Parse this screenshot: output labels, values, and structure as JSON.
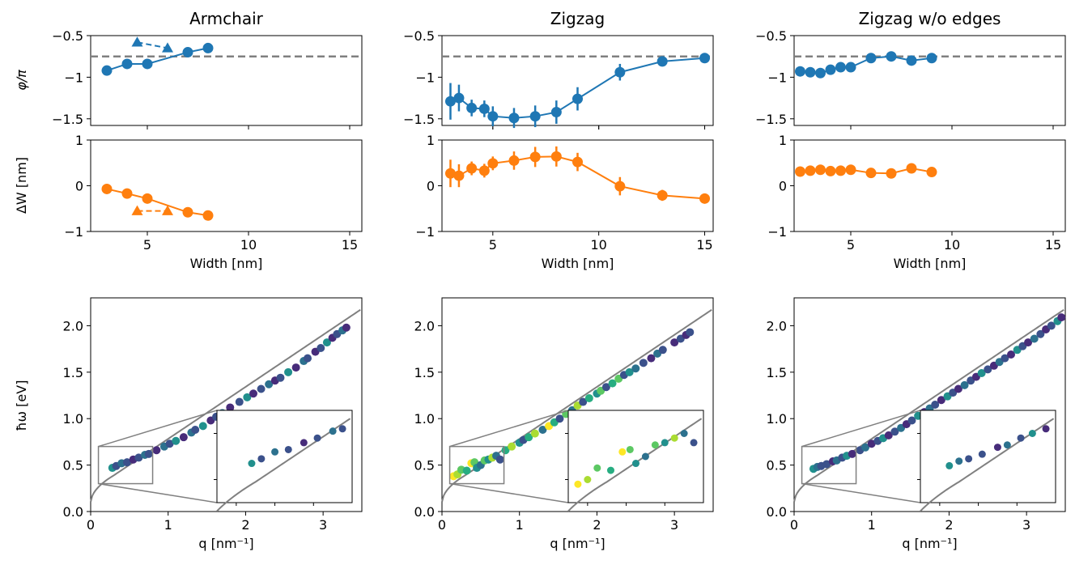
{
  "colors": {
    "phase": "#1f77b4",
    "width_shift": "#ff7f0e",
    "reference": "#808080",
    "viridis": [
      "#440154",
      "#472c7a",
      "#3b518b",
      "#2c718e",
      "#21908d",
      "#27ad81",
      "#5cc863",
      "#aadc32",
      "#fde725"
    ]
  },
  "labels": {
    "phi_ylabel": "φ/π",
    "dw_ylabel": "ΔW [nm]",
    "width_xlabel": "Width [nm]",
    "disp_ylabel": "ħω [eV]",
    "disp_xlabel": "q [nm⁻¹]"
  },
  "chart_data": [
    {
      "type": "line",
      "panel": "phase",
      "title": "Armchair",
      "ylabel": "φ/π",
      "xlim": [
        2.2,
        15.6
      ],
      "ylim": [
        -1.58,
        -0.5
      ],
      "xticks": [
        5,
        10,
        15
      ],
      "yticks": [
        -1.5,
        -1.0,
        -0.5
      ],
      "reference_line": -0.75,
      "series": [
        {
          "style": "solid-circle",
          "x": [
            3,
            4,
            5,
            7,
            8
          ],
          "y": [
            -0.92,
            -0.84,
            -0.84,
            -0.7,
            -0.65
          ],
          "err": [
            0,
            0,
            0,
            0,
            0
          ]
        },
        {
          "style": "dashed-triangle",
          "x": [
            4.5,
            6
          ],
          "y": [
            -0.58,
            -0.65
          ]
        }
      ]
    },
    {
      "type": "line",
      "panel": "phase",
      "title": "Zigzag",
      "ylabel": "",
      "xlim": [
        2.6,
        15.4
      ],
      "ylim": [
        -1.58,
        -0.5
      ],
      "xticks": [
        5,
        10,
        15
      ],
      "yticks": [
        -1.5,
        -1.0,
        -0.5
      ],
      "reference_line": -0.75,
      "series": [
        {
          "style": "solid-circle",
          "x": [
            3,
            3.4,
            4,
            4.6,
            5,
            6,
            7,
            8,
            9,
            11,
            13,
            15
          ],
          "y": [
            -1.29,
            -1.25,
            -1.37,
            -1.38,
            -1.47,
            -1.49,
            -1.47,
            -1.42,
            -1.26,
            -0.94,
            -0.81,
            -0.77
          ],
          "err": [
            0.22,
            0.16,
            0.1,
            0.1,
            0.12,
            0.12,
            0.13,
            0.14,
            0.14,
            0.1,
            0.04,
            0.04
          ]
        }
      ]
    },
    {
      "type": "line",
      "panel": "phase",
      "title": "Zigzag w/o edges",
      "ylabel": "",
      "xlim": [
        2.2,
        15.6
      ],
      "ylim": [
        -1.58,
        -0.5
      ],
      "xticks": [
        5,
        10,
        15
      ],
      "yticks": [
        -1.5,
        -1.0,
        -0.5
      ],
      "reference_line": -0.75,
      "series": [
        {
          "style": "solid-circle",
          "x": [
            2.5,
            3,
            3.5,
            4,
            4.5,
            5,
            6,
            7,
            8,
            9
          ],
          "y": [
            -0.93,
            -0.94,
            -0.95,
            -0.91,
            -0.88,
            -0.88,
            -0.77,
            -0.75,
            -0.8,
            -0.77
          ],
          "err": [
            0,
            0,
            0,
            0,
            0,
            0,
            0,
            0,
            0,
            0
          ]
        }
      ]
    },
    {
      "type": "line",
      "panel": "width_shift",
      "title": "",
      "ylabel": "ΔW [nm]",
      "xlabel": "Width [nm]",
      "xlim": [
        2.2,
        15.6
      ],
      "ylim": [
        -1,
        1
      ],
      "xticks": [
        5,
        10,
        15
      ],
      "yticks": [
        -1,
        0,
        1
      ],
      "series": [
        {
          "style": "solid-circle",
          "x": [
            3,
            4,
            5,
            7,
            8
          ],
          "y": [
            -0.07,
            -0.17,
            -0.28,
            -0.58,
            -0.65
          ],
          "err": [
            0,
            0,
            0,
            0,
            0
          ]
        },
        {
          "style": "dashed-triangle",
          "x": [
            4.5,
            6
          ],
          "y": [
            -0.55,
            -0.55
          ]
        }
      ]
    },
    {
      "type": "line",
      "panel": "width_shift",
      "title": "",
      "ylabel": "",
      "xlabel": "Width [nm]",
      "xlim": [
        2.6,
        15.4
      ],
      "ylim": [
        -1,
        1
      ],
      "xticks": [
        5,
        10,
        15
      ],
      "yticks": [
        -1,
        0,
        1
      ],
      "series": [
        {
          "style": "solid-circle",
          "x": [
            3,
            3.4,
            4,
            4.6,
            5,
            6,
            7,
            8,
            9,
            11,
            13,
            15
          ],
          "y": [
            0.27,
            0.22,
            0.38,
            0.33,
            0.49,
            0.55,
            0.63,
            0.64,
            0.52,
            -0.01,
            -0.21,
            -0.28
          ],
          "err": [
            0.3,
            0.25,
            0.15,
            0.15,
            0.15,
            0.2,
            0.22,
            0.22,
            0.2,
            0.2,
            0.12,
            0.06
          ]
        }
      ]
    },
    {
      "type": "line",
      "panel": "width_shift",
      "title": "",
      "ylabel": "",
      "xlabel": "Width [nm]",
      "xlim": [
        2.2,
        15.6
      ],
      "ylim": [
        -1,
        1
      ],
      "xticks": [
        5,
        10,
        15
      ],
      "yticks": [
        -1,
        0,
        1
      ],
      "series": [
        {
          "style": "solid-circle",
          "x": [
            2.5,
            3,
            3.5,
            4,
            4.5,
            5,
            6,
            7,
            8,
            9
          ],
          "y": [
            0.31,
            0.33,
            0.35,
            0.32,
            0.33,
            0.35,
            0.28,
            0.27,
            0.38,
            0.3
          ],
          "err": [
            0,
            0,
            0,
            0,
            0,
            0,
            0,
            0,
            0,
            0
          ]
        }
      ]
    },
    {
      "type": "scatter",
      "panel": "dispersion",
      "title": "",
      "ylabel": "ħω [eV]",
      "xlabel": "q [nm⁻¹]",
      "xlim": [
        0,
        3.5
      ],
      "ylim": [
        0,
        2.3
      ],
      "xticks": [
        0,
        1,
        2,
        3
      ],
      "yticks": [
        0.0,
        0.5,
        1.0,
        1.5,
        2.0
      ],
      "inset": {
        "xlim": [
          0.1,
          0.8
        ],
        "ylim": [
          0.3,
          0.7
        ]
      },
      "points": [
        {
          "x": 0.28,
          "y": 0.47,
          "c": 4
        },
        {
          "x": 0.33,
          "y": 0.49,
          "c": 2
        },
        {
          "x": 0.4,
          "y": 0.52,
          "c": 3
        },
        {
          "x": 0.47,
          "y": 0.53,
          "c": 2
        },
        {
          "x": 0.55,
          "y": 0.56,
          "c": 1
        },
        {
          "x": 0.62,
          "y": 0.58,
          "c": 2
        },
        {
          "x": 0.7,
          "y": 0.61,
          "c": 3
        },
        {
          "x": 0.75,
          "y": 0.62,
          "c": 2
        },
        {
          "x": 0.85,
          "y": 0.66,
          "c": 1
        },
        {
          "x": 0.95,
          "y": 0.7,
          "c": 3
        },
        {
          "x": 1.02,
          "y": 0.73,
          "c": 2
        },
        {
          "x": 1.1,
          "y": 0.76,
          "c": 4
        },
        {
          "x": 1.2,
          "y": 0.8,
          "c": 1
        },
        {
          "x": 1.3,
          "y": 0.85,
          "c": 3
        },
        {
          "x": 1.35,
          "y": 0.88,
          "c": 2
        },
        {
          "x": 1.45,
          "y": 0.92,
          "c": 4
        },
        {
          "x": 1.55,
          "y": 0.98,
          "c": 1
        },
        {
          "x": 1.62,
          "y": 1.02,
          "c": 2
        },
        {
          "x": 1.7,
          "y": 1.06,
          "c": 3
        },
        {
          "x": 1.8,
          "y": 1.12,
          "c": 1
        },
        {
          "x": 1.92,
          "y": 1.18,
          "c": 2
        },
        {
          "x": 2.02,
          "y": 1.23,
          "c": 4
        },
        {
          "x": 2.1,
          "y": 1.27,
          "c": 1
        },
        {
          "x": 2.2,
          "y": 1.32,
          "c": 2
        },
        {
          "x": 2.3,
          "y": 1.37,
          "c": 3
        },
        {
          "x": 2.38,
          "y": 1.41,
          "c": 1
        },
        {
          "x": 2.45,
          "y": 1.44,
          "c": 2
        },
        {
          "x": 2.55,
          "y": 1.5,
          "c": 4
        },
        {
          "x": 2.65,
          "y": 1.55,
          "c": 1
        },
        {
          "x": 2.75,
          "y": 1.62,
          "c": 3
        },
        {
          "x": 2.8,
          "y": 1.65,
          "c": 2
        },
        {
          "x": 2.9,
          "y": 1.72,
          "c": 1
        },
        {
          "x": 2.97,
          "y": 1.76,
          "c": 2
        },
        {
          "x": 3.05,
          "y": 1.82,
          "c": 4
        },
        {
          "x": 3.12,
          "y": 1.87,
          "c": 1
        },
        {
          "x": 3.18,
          "y": 1.91,
          "c": 2
        },
        {
          "x": 3.25,
          "y": 1.95,
          "c": 3
        },
        {
          "x": 3.3,
          "y": 1.98,
          "c": 1
        }
      ]
    },
    {
      "type": "scatter",
      "panel": "dispersion",
      "title": "",
      "ylabel": "",
      "xlabel": "q [nm⁻¹]",
      "xlim": [
        0,
        3.5
      ],
      "ylim": [
        0,
        2.3
      ],
      "xticks": [
        0,
        1,
        2,
        3
      ],
      "yticks": [
        0.0,
        0.5,
        1.0,
        1.5,
        2.0
      ],
      "inset": {
        "xlim": [
          0.1,
          0.8
        ],
        "ylim": [
          0.3,
          0.7
        ]
      },
      "points": [
        {
          "x": 0.15,
          "y": 0.38,
          "c": 8
        },
        {
          "x": 0.2,
          "y": 0.4,
          "c": 7
        },
        {
          "x": 0.25,
          "y": 0.45,
          "c": 6
        },
        {
          "x": 0.32,
          "y": 0.44,
          "c": 5
        },
        {
          "x": 0.38,
          "y": 0.52,
          "c": 8
        },
        {
          "x": 0.42,
          "y": 0.53,
          "c": 6
        },
        {
          "x": 0.45,
          "y": 0.47,
          "c": 4
        },
        {
          "x": 0.5,
          "y": 0.5,
          "c": 3
        },
        {
          "x": 0.55,
          "y": 0.55,
          "c": 6
        },
        {
          "x": 0.6,
          "y": 0.56,
          "c": 4
        },
        {
          "x": 0.65,
          "y": 0.58,
          "c": 7
        },
        {
          "x": 0.7,
          "y": 0.6,
          "c": 3
        },
        {
          "x": 0.75,
          "y": 0.56,
          "c": 2
        },
        {
          "x": 0.82,
          "y": 0.66,
          "c": 5
        },
        {
          "x": 0.9,
          "y": 0.7,
          "c": 7
        },
        {
          "x": 1.0,
          "y": 0.74,
          "c": 4
        },
        {
          "x": 1.05,
          "y": 0.77,
          "c": 2
        },
        {
          "x": 1.12,
          "y": 0.8,
          "c": 5
        },
        {
          "x": 1.2,
          "y": 0.84,
          "c": 7
        },
        {
          "x": 1.3,
          "y": 0.88,
          "c": 3
        },
        {
          "x": 1.38,
          "y": 0.92,
          "c": 8
        },
        {
          "x": 1.45,
          "y": 0.96,
          "c": 5
        },
        {
          "x": 1.52,
          "y": 1.0,
          "c": 2
        },
        {
          "x": 1.6,
          "y": 1.05,
          "c": 6
        },
        {
          "x": 1.68,
          "y": 1.09,
          "c": 3
        },
        {
          "x": 1.75,
          "y": 1.14,
          "c": 7
        },
        {
          "x": 1.82,
          "y": 1.18,
          "c": 2
        },
        {
          "x": 1.9,
          "y": 1.22,
          "c": 5
        },
        {
          "x": 2.0,
          "y": 1.27,
          "c": 4
        },
        {
          "x": 2.05,
          "y": 1.3,
          "c": 6
        },
        {
          "x": 2.12,
          "y": 1.34,
          "c": 2
        },
        {
          "x": 2.2,
          "y": 1.38,
          "c": 5
        },
        {
          "x": 2.28,
          "y": 1.43,
          "c": 6
        },
        {
          "x": 2.35,
          "y": 1.47,
          "c": 2
        },
        {
          "x": 2.42,
          "y": 1.5,
          "c": 4
        },
        {
          "x": 2.5,
          "y": 1.54,
          "c": 3
        },
        {
          "x": 2.6,
          "y": 1.6,
          "c": 2
        },
        {
          "x": 2.7,
          "y": 1.65,
          "c": 1
        },
        {
          "x": 2.78,
          "y": 1.7,
          "c": 3
        },
        {
          "x": 2.85,
          "y": 1.74,
          "c": 2
        },
        {
          "x": 3.0,
          "y": 1.82,
          "c": 1
        },
        {
          "x": 3.08,
          "y": 1.86,
          "c": 2
        },
        {
          "x": 3.15,
          "y": 1.9,
          "c": 1
        },
        {
          "x": 3.2,
          "y": 1.93,
          "c": 2
        }
      ]
    },
    {
      "type": "scatter",
      "panel": "dispersion",
      "title": "",
      "ylabel": "",
      "xlabel": "q [nm⁻¹]",
      "xlim": [
        0,
        3.5
      ],
      "ylim": [
        0,
        2.3
      ],
      "xticks": [
        0,
        1,
        2,
        3
      ],
      "yticks": [
        0.0,
        0.5,
        1.0,
        1.5,
        2.0
      ],
      "inset": {
        "xlim": [
          0.1,
          0.8
        ],
        "ylim": [
          0.3,
          0.7
        ]
      },
      "points": [
        {
          "x": 0.25,
          "y": 0.46,
          "c": 4
        },
        {
          "x": 0.3,
          "y": 0.48,
          "c": 3
        },
        {
          "x": 0.35,
          "y": 0.49,
          "c": 2
        },
        {
          "x": 0.42,
          "y": 0.51,
          "c": 2
        },
        {
          "x": 0.5,
          "y": 0.54,
          "c": 1
        },
        {
          "x": 0.55,
          "y": 0.55,
          "c": 3
        },
        {
          "x": 0.62,
          "y": 0.58,
          "c": 2
        },
        {
          "x": 0.68,
          "y": 0.6,
          "c": 4
        },
        {
          "x": 0.75,
          "y": 0.62,
          "c": 1
        },
        {
          "x": 0.85,
          "y": 0.66,
          "c": 2
        },
        {
          "x": 0.92,
          "y": 0.69,
          "c": 3
        },
        {
          "x": 1.0,
          "y": 0.73,
          "c": 1
        },
        {
          "x": 1.08,
          "y": 0.76,
          "c": 2
        },
        {
          "x": 1.15,
          "y": 0.79,
          "c": 4
        },
        {
          "x": 1.22,
          "y": 0.82,
          "c": 1
        },
        {
          "x": 1.3,
          "y": 0.86,
          "c": 2
        },
        {
          "x": 1.38,
          "y": 0.9,
          "c": 3
        },
        {
          "x": 1.45,
          "y": 0.94,
          "c": 1
        },
        {
          "x": 1.52,
          "y": 0.98,
          "c": 2
        },
        {
          "x": 1.6,
          "y": 1.03,
          "c": 4
        },
        {
          "x": 1.68,
          "y": 1.07,
          "c": 1
        },
        {
          "x": 1.75,
          "y": 1.11,
          "c": 3
        },
        {
          "x": 1.82,
          "y": 1.15,
          "c": 2
        },
        {
          "x": 1.9,
          "y": 1.2,
          "c": 1
        },
        {
          "x": 1.98,
          "y": 1.24,
          "c": 4
        },
        {
          "x": 2.05,
          "y": 1.28,
          "c": 2
        },
        {
          "x": 2.12,
          "y": 1.32,
          "c": 1
        },
        {
          "x": 2.2,
          "y": 1.36,
          "c": 3
        },
        {
          "x": 2.28,
          "y": 1.41,
          "c": 2
        },
        {
          "x": 2.35,
          "y": 1.45,
          "c": 1
        },
        {
          "x": 2.42,
          "y": 1.49,
          "c": 4
        },
        {
          "x": 2.5,
          "y": 1.53,
          "c": 2
        },
        {
          "x": 2.58,
          "y": 1.57,
          "c": 1
        },
        {
          "x": 2.65,
          "y": 1.61,
          "c": 3
        },
        {
          "x": 2.72,
          "y": 1.65,
          "c": 2
        },
        {
          "x": 2.8,
          "y": 1.69,
          "c": 1
        },
        {
          "x": 2.88,
          "y": 1.74,
          "c": 4
        },
        {
          "x": 2.95,
          "y": 1.78,
          "c": 2
        },
        {
          "x": 3.02,
          "y": 1.82,
          "c": 1
        },
        {
          "x": 3.1,
          "y": 1.86,
          "c": 3
        },
        {
          "x": 3.18,
          "y": 1.91,
          "c": 2
        },
        {
          "x": 3.25,
          "y": 1.96,
          "c": 1
        },
        {
          "x": 3.32,
          "y": 2.0,
          "c": 2
        },
        {
          "x": 3.4,
          "y": 2.05,
          "c": 4
        },
        {
          "x": 3.45,
          "y": 2.09,
          "c": 1
        }
      ]
    }
  ]
}
